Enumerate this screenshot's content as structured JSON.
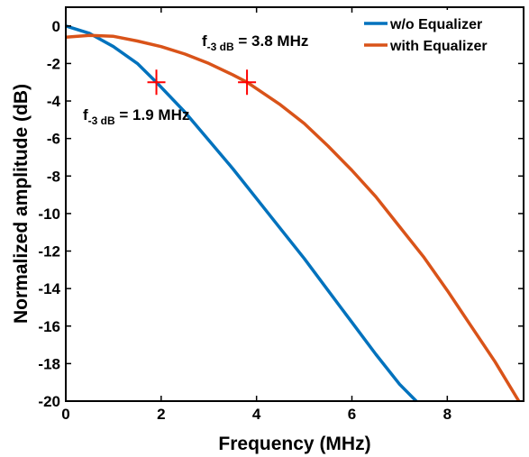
{
  "chart_data": {
    "type": "line",
    "xlabel": "Frequency (MHz)",
    "ylabel": "Normalized amplitude (dB)",
    "xlim": [
      0,
      9.6
    ],
    "ylim": [
      -20,
      1
    ],
    "xticks": [
      0,
      2,
      4,
      6,
      8
    ],
    "yticks": [
      0,
      -2,
      -4,
      -6,
      -8,
      -10,
      -12,
      -14,
      -16,
      -18,
      -20
    ],
    "xtick_labels": [
      "0",
      "2",
      "4",
      "6",
      "8"
    ],
    "ytick_labels": [
      "0",
      "-2",
      "-4",
      "-6",
      "-8",
      "-10",
      "-12",
      "-14",
      "-16",
      "-18",
      "-20"
    ],
    "grid": false,
    "legend_position": "top-right",
    "series": [
      {
        "name": "w/o Equalizer",
        "color": "#0072BD",
        "x": [
          0,
          0.5,
          1.0,
          1.5,
          1.9,
          2.5,
          3.0,
          3.5,
          4.0,
          4.5,
          5.0,
          5.5,
          6.0,
          6.5,
          7.0,
          7.35
        ],
        "y": [
          0,
          -0.4,
          -1.1,
          -2.0,
          -3.0,
          -4.6,
          -6.1,
          -7.6,
          -9.2,
          -10.8,
          -12.4,
          -14.1,
          -15.8,
          -17.5,
          -19.1,
          -20.0
        ]
      },
      {
        "name": "with Equalizer",
        "color": "#D95319",
        "x": [
          0,
          0.5,
          1.0,
          1.5,
          2.0,
          2.5,
          3.0,
          3.5,
          3.8,
          4.5,
          5.0,
          5.5,
          6.0,
          6.5,
          7.0,
          7.5,
          8.0,
          8.5,
          9.0,
          9.5
        ],
        "y": [
          -0.6,
          -0.5,
          -0.55,
          -0.8,
          -1.1,
          -1.5,
          -2.0,
          -2.6,
          -3.0,
          -4.2,
          -5.2,
          -6.4,
          -7.7,
          -9.1,
          -10.7,
          -12.3,
          -14.1,
          -16.0,
          -17.9,
          -20.0
        ]
      }
    ],
    "markers": [
      {
        "x": 1.9,
        "y": -3.0,
        "color": "#FF0000"
      },
      {
        "x": 3.8,
        "y": -3.0,
        "color": "#FF0000"
      }
    ],
    "annotations": [
      {
        "main": "f",
        "sub": "-3 dB",
        "rest": " = 3.8 MHz"
      },
      {
        "main": "f",
        "sub": "-3 dB",
        "rest": " = 1.9 MHz"
      }
    ]
  }
}
